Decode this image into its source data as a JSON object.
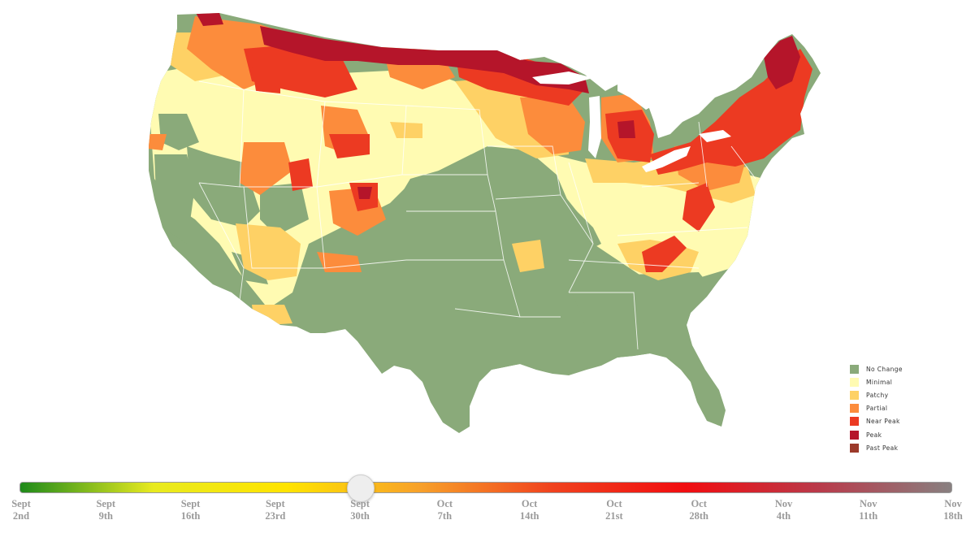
{
  "legend": {
    "items": [
      {
        "label": "No Change",
        "color": "#8aaa7a"
      },
      {
        "label": "Minimal",
        "color": "#fffbb2"
      },
      {
        "label": "Patchy",
        "color": "#fed165"
      },
      {
        "label": "Partial",
        "color": "#fc8c3c"
      },
      {
        "label": "Near Peak",
        "color": "#ec3a22"
      },
      {
        "label": "Peak",
        "color": "#b5152a"
      },
      {
        "label": "Past Peak",
        "color": "#9c3a2a"
      }
    ]
  },
  "slider": {
    "current_index": 4,
    "gradient": [
      "#1e8a1a",
      "#e8ea20",
      "#ffe400",
      "#f7a12a",
      "#f0421e",
      "#f10d10",
      "#b93a4a",
      "#888080"
    ],
    "ticks": [
      {
        "month": "Sept",
        "day": "2nd"
      },
      {
        "month": "Sept",
        "day": "9th"
      },
      {
        "month": "Sept",
        "day": "16th"
      },
      {
        "month": "Sept",
        "day": "23rd"
      },
      {
        "month": "Sept",
        "day": "30th"
      },
      {
        "month": "Oct",
        "day": "7th"
      },
      {
        "month": "Oct",
        "day": "14th"
      },
      {
        "month": "Oct",
        "day": "21st"
      },
      {
        "month": "Oct",
        "day": "28th"
      },
      {
        "month": "Nov",
        "day": "4th"
      },
      {
        "month": "Nov",
        "day": "11th"
      },
      {
        "month": "Nov",
        "day": "18th"
      }
    ]
  }
}
